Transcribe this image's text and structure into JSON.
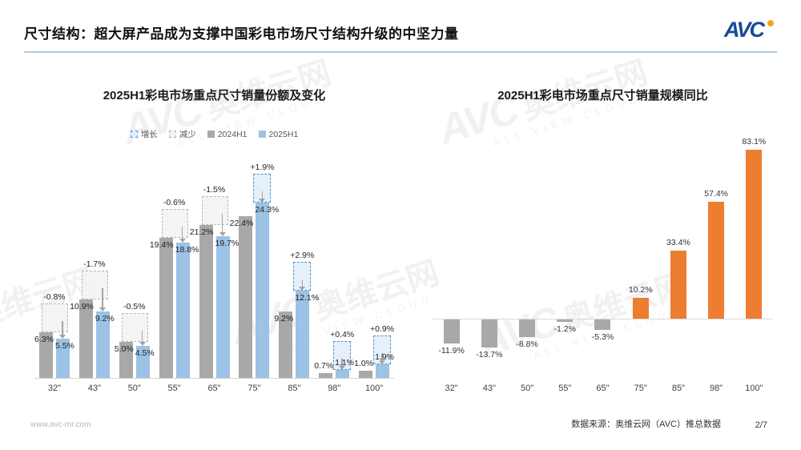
{
  "header": {
    "title": "尺寸结构：超大屏产品成为支撑中国彩电市场尺寸结构升级的中坚力量",
    "logo_text": "AVC"
  },
  "watermark": {
    "logo": "AVC",
    "cn": "奥维云网",
    "en": "ALL VIEW CLOUD"
  },
  "chart_data": [
    {
      "type": "bar",
      "title": "2025H1彩电市场重点尺寸销量份额及变化",
      "categories": [
        "32\"",
        "43\"",
        "50\"",
        "55\"",
        "65\"",
        "75\"",
        "85\"",
        "98\"",
        "100\""
      ],
      "series": [
        {
          "name": "2024H1",
          "color": "#a8a8a8",
          "values": [
            6.3,
            10.9,
            5.0,
            19.4,
            21.2,
            22.4,
            9.2,
            0.7,
            1.0
          ],
          "labels": [
            "6.3%",
            "10.9%",
            "5.0%",
            "19.4%",
            "21.2%",
            "22.4%",
            "9.2%",
            "0.7%",
            "1.0%"
          ]
        },
        {
          "name": "2025H1",
          "color": "#9cc2e5",
          "values": [
            5.5,
            9.2,
            4.5,
            18.8,
            19.7,
            24.3,
            12.1,
            1.1,
            1.9
          ],
          "labels": [
            "5.5%",
            "9.2%",
            "4.5%",
            "18.8%",
            "19.7%",
            "24.3%",
            "12.1%",
            "1.1%",
            "1.9%"
          ]
        }
      ],
      "changes": [
        -0.8,
        -1.7,
        -0.5,
        -0.6,
        -1.5,
        1.9,
        2.9,
        0.4,
        0.9
      ],
      "change_labels": [
        "-0.8%",
        "-1.7%",
        "-0.5%",
        "-0.6%",
        "-1.5%",
        "+1.9%",
        "+2.9%",
        "+0.4%",
        "+0.9%"
      ],
      "legend": [
        {
          "label": "增长",
          "style": "dashed-blue"
        },
        {
          "label": "减少",
          "style": "dashed-gray"
        },
        {
          "label": "2024H1",
          "style": "solid-gray"
        },
        {
          "label": "2025H1",
          "style": "solid-blue"
        }
      ],
      "unit": "%",
      "ylim": [
        0,
        26
      ],
      "grid": false,
      "legend_position": "top"
    },
    {
      "type": "bar",
      "title": "2025H1彩电市场重点尺寸销量规模同比",
      "categories": [
        "32\"",
        "43\"",
        "50\"",
        "55\"",
        "65\"",
        "75\"",
        "85\"",
        "98\"",
        "100\""
      ],
      "values": [
        -11.9,
        -13.7,
        -8.8,
        -1.2,
        -5.3,
        10.2,
        33.4,
        57.4,
        83.1
      ],
      "labels": [
        "-11.9%",
        "-13.7%",
        "-8.8%",
        "-1.2%",
        "-5.3%",
        "10.2%",
        "33.4%",
        "57.4%",
        "83.1%"
      ],
      "positive_color": "#ed7d31",
      "negative_color": "#a8a8a8",
      "unit": "%",
      "ylim": [
        -15,
        90
      ],
      "grid": false
    }
  ],
  "footer": {
    "website": "www.avc-mr.com",
    "source": "数据来源：奥维云网（AVC）推总数据",
    "page": "2/7"
  }
}
